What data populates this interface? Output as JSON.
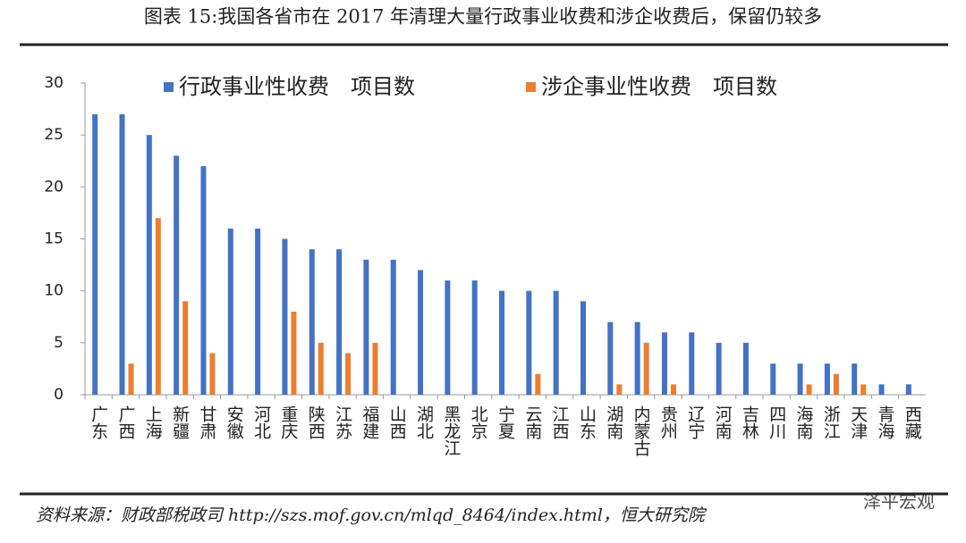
{
  "chart_data": {
    "type": "bar",
    "title": "图表 15:我国各省市在 2017 年清理大量行政事业收费和涉企收费后，保留仍较多",
    "categories": [
      "广东",
      "广西",
      "上海",
      "新疆",
      "甘肃",
      "安徽",
      "河北",
      "重庆",
      "陕西",
      "江苏",
      "福建",
      "山西",
      "湖北",
      "黑龙江",
      "北京",
      "宁夏",
      "云南",
      "江西",
      "山东",
      "湖南",
      "内蒙古",
      "贵州",
      "辽宁",
      "河南",
      "吉林",
      "四川",
      "海南",
      "浙江",
      "天津",
      "青海",
      "西藏"
    ],
    "series": [
      {
        "name": "行政事业性收费　项目数",
        "color": "#4472c4",
        "values": [
          27,
          27,
          25,
          23,
          22,
          16,
          16,
          15,
          14,
          14,
          13,
          13,
          12,
          11,
          11,
          10,
          10,
          10,
          9,
          7,
          7,
          6,
          6,
          5,
          5,
          3,
          3,
          3,
          3,
          1,
          1
        ]
      },
      {
        "name": "涉企事业性收费　项目数",
        "color": "#ed7d31",
        "values": [
          0,
          3,
          17,
          9,
          4,
          0,
          0,
          8,
          5,
          4,
          5,
          0,
          0,
          0,
          0,
          0,
          2,
          0,
          0,
          1,
          5,
          1,
          0,
          0,
          0,
          0,
          1,
          2,
          1,
          0,
          0
        ]
      }
    ],
    "ylim": [
      0,
      30
    ],
    "yticks": [
      0,
      5,
      10,
      15,
      20,
      25,
      30
    ],
    "grid": false,
    "legend": "top",
    "source": "资料来源：财政部税政司 http://szs.mof.gov.cn/mlqd_8464/index.html，恒大研究院",
    "watermark": "泽平宏观"
  }
}
